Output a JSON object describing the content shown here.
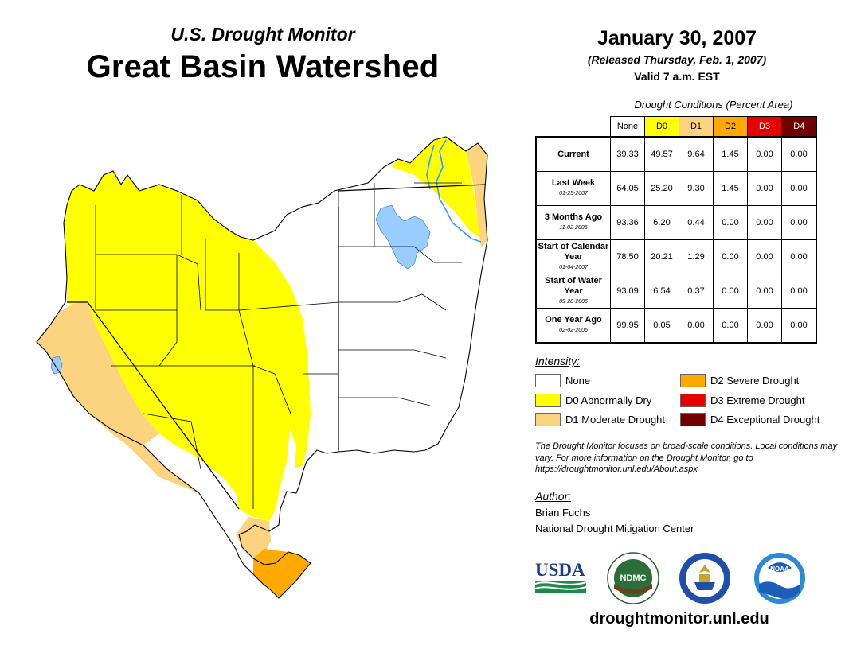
{
  "header": {
    "subtitle": "U.S. Drought Monitor",
    "title": "Great Basin Watershed",
    "date": "January 30, 2007",
    "released": "(Released Thursday, Feb. 1, 2007)",
    "valid": "Valid 7 a.m. EST"
  },
  "table": {
    "caption": "Drought Conditions (Percent Area)",
    "columns": [
      "None",
      "D0",
      "D1",
      "D2",
      "D3",
      "D4"
    ],
    "column_colors": [
      "#ffffff",
      "#ffff00",
      "#fcd37f",
      "#ffaa00",
      "#e60000",
      "#730000"
    ],
    "column_text_colors": [
      "#000000",
      "#000000",
      "#000000",
      "#000000",
      "#ffffff",
      "#ffffff"
    ],
    "rows": [
      {
        "label": "Current",
        "date": "",
        "values": [
          "39.33",
          "49.57",
          "9.64",
          "1.45",
          "0.00",
          "0.00"
        ]
      },
      {
        "label": "Last Week",
        "date": "01-25-2007",
        "values": [
          "64.05",
          "25.20",
          "9.30",
          "1.45",
          "0.00",
          "0.00"
        ]
      },
      {
        "label": "3 Months Ago",
        "date": "11-02-2006",
        "values": [
          "93.36",
          "6.20",
          "0.44",
          "0.00",
          "0.00",
          "0.00"
        ]
      },
      {
        "label": "Start of Calendar Year",
        "date": "01-04-2007",
        "values": [
          "78.50",
          "20.21",
          "1.29",
          "0.00",
          "0.00",
          "0.00"
        ]
      },
      {
        "label": "Start of Water Year",
        "date": "09-28-2006",
        "values": [
          "93.09",
          "6.54",
          "0.37",
          "0.00",
          "0.00",
          "0.00"
        ]
      },
      {
        "label": "One Year Ago",
        "date": "02-02-2006",
        "values": [
          "99.95",
          "0.05",
          "0.00",
          "0.00",
          "0.00",
          "0.00"
        ]
      }
    ]
  },
  "legend": {
    "title": "Intensity:",
    "items": [
      {
        "label": "None",
        "color": "#ffffff"
      },
      {
        "label": "D0 Abnormally Dry",
        "color": "#ffff00"
      },
      {
        "label": "D1 Moderate Drought",
        "color": "#fcd37f"
      },
      {
        "label": "D2 Severe Drought",
        "color": "#ffaa00"
      },
      {
        "label": "D3 Extreme Drought",
        "color": "#e60000"
      },
      {
        "label": "D4 Exceptional Drought",
        "color": "#730000"
      }
    ]
  },
  "note": "The Drought Monitor focuses on broad-scale conditions. Local conditions may vary. For more information on the Drought Monitor, go to https://droughtmonitor.unl.edu/About.aspx",
  "author": {
    "label": "Author:",
    "name": "Brian Fuchs",
    "org": "National Drought Mitigation Center"
  },
  "logos": {
    "usda": "USDA",
    "ndmc": "NDMC",
    "noaa": "NOAA"
  },
  "footer_url": "droughtmonitor.unl.edu",
  "map_colors": {
    "none": "#ffffff",
    "d0": "#ffff00",
    "d1": "#fcd37f",
    "d2": "#ffaa00",
    "water": "#99ccff",
    "river": "#3399ff"
  }
}
